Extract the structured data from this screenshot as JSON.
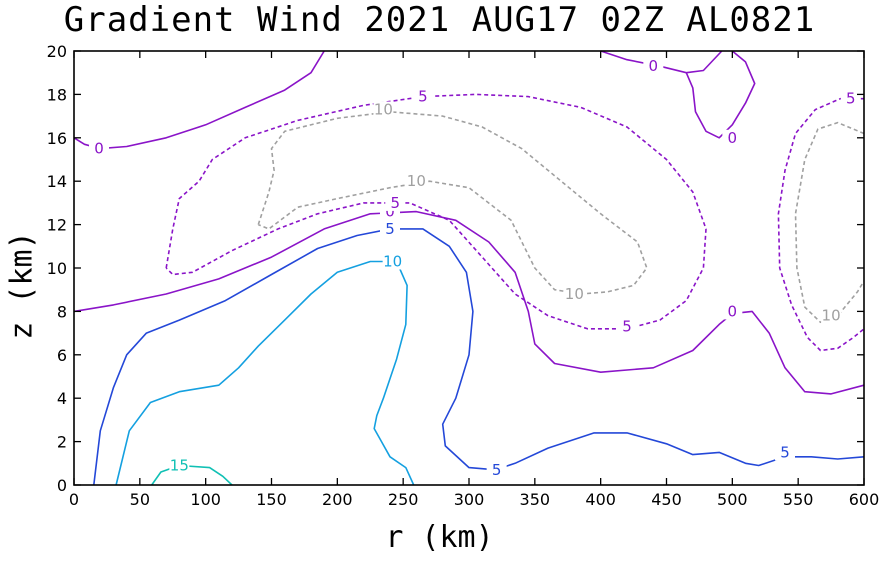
{
  "chart_data": {
    "type": "contour",
    "title": "Gradient Wind 2021 AUG17 02Z  AL0821",
    "xlabel": "r (km)",
    "ylabel": "z (km)",
    "xlim": [
      0,
      600
    ],
    "ylim": [
      0,
      20
    ],
    "xticks": [
      "0",
      "50",
      "100",
      "150",
      "200",
      "250",
      "300",
      "350",
      "400",
      "450",
      "500",
      "550",
      "600"
    ],
    "yticks": [
      "0",
      "2",
      "4",
      "6",
      "8",
      "10",
      "12",
      "14",
      "16",
      "18",
      "20"
    ],
    "colors": {
      "purple": "#8a14c8",
      "blue": "#2448d8",
      "cyan": "#14a0e0",
      "teal": "#10c0b4",
      "gray": "#a0a0a0"
    },
    "contours": [
      {
        "level": 0,
        "label": "0",
        "color": "purple",
        "dashed": false,
        "points": [
          [
            0,
            16.0
          ],
          [
            8,
            15.7
          ],
          [
            20,
            15.5
          ],
          [
            40,
            15.6
          ],
          [
            70,
            16.0
          ],
          [
            100,
            16.6
          ],
          [
            130,
            17.4
          ],
          [
            160,
            18.2
          ],
          [
            180,
            19.0
          ],
          [
            190,
            20.0
          ]
        ],
        "labels": [
          [
            19,
            15.5
          ]
        ]
      },
      {
        "level": 0,
        "label": "0",
        "color": "purple",
        "dashed": false,
        "points": [
          [
            400,
            20.0
          ],
          [
            420,
            19.6
          ],
          [
            445,
            19.3
          ],
          [
            465,
            19.0
          ],
          [
            478,
            19.1
          ],
          [
            492,
            20.0
          ]
        ],
        "labels": [
          [
            440,
            19.3
          ]
        ]
      },
      {
        "level": 0,
        "label": "0",
        "color": "purple",
        "dashed": false,
        "points": [
          [
            500,
            20.0
          ],
          [
            510,
            19.5
          ],
          [
            517,
            18.5
          ],
          [
            510,
            17.6
          ],
          [
            500,
            16.6
          ],
          [
            490,
            16.0
          ],
          [
            480,
            16.3
          ],
          [
            472,
            17.2
          ],
          [
            470,
            18.3
          ],
          [
            465,
            19.0
          ]
        ],
        "labels": [
          [
            500,
            16.0
          ]
        ]
      },
      {
        "level": 0,
        "label": "0",
        "color": "purple",
        "dashed": false,
        "points": [
          [
            0,
            8.0
          ],
          [
            30,
            8.3
          ],
          [
            70,
            8.8
          ],
          [
            110,
            9.5
          ],
          [
            150,
            10.5
          ],
          [
            190,
            11.8
          ],
          [
            225,
            12.5
          ],
          [
            260,
            12.6
          ],
          [
            290,
            12.2
          ],
          [
            315,
            11.2
          ],
          [
            335,
            9.8
          ],
          [
            345,
            8.0
          ],
          [
            350,
            6.5
          ],
          [
            365,
            5.6
          ],
          [
            400,
            5.2
          ],
          [
            440,
            5.4
          ],
          [
            470,
            6.2
          ],
          [
            490,
            7.4
          ],
          [
            500,
            7.9
          ],
          [
            515,
            8.0
          ],
          [
            528,
            7.0
          ],
          [
            540,
            5.4
          ],
          [
            555,
            4.3
          ],
          [
            575,
            4.2
          ],
          [
            600,
            4.6
          ]
        ],
        "labels": [
          [
            240,
            12.6
          ],
          [
            500,
            8.0
          ]
        ]
      },
      {
        "level": 5,
        "label": "5",
        "color": "purple",
        "dashed": true,
        "points": [
          [
            70,
            10.0
          ],
          [
            75,
            11.8
          ],
          [
            80,
            13.2
          ],
          [
            95,
            14.0
          ],
          [
            105,
            15.0
          ],
          [
            130,
            16.0
          ],
          [
            170,
            16.8
          ],
          [
            220,
            17.5
          ],
          [
            265,
            17.9
          ],
          [
            305,
            18.0
          ],
          [
            345,
            17.9
          ],
          [
            385,
            17.4
          ],
          [
            420,
            16.5
          ],
          [
            450,
            15.0
          ],
          [
            470,
            13.5
          ],
          [
            480,
            11.8
          ],
          [
            478,
            10.0
          ],
          [
            465,
            8.5
          ],
          [
            445,
            7.6
          ],
          [
            420,
            7.2
          ],
          [
            390,
            7.2
          ],
          [
            360,
            7.8
          ],
          [
            335,
            8.8
          ],
          [
            310,
            10.5
          ],
          [
            285,
            12.2
          ],
          [
            255,
            13.0
          ],
          [
            220,
            13.0
          ],
          [
            185,
            12.5
          ],
          [
            155,
            11.8
          ],
          [
            120,
            10.8
          ],
          [
            90,
            9.8
          ],
          [
            75,
            9.7
          ],
          [
            70,
            10.0
          ]
        ],
        "labels": [
          [
            265,
            17.9
          ],
          [
            420,
            7.3
          ],
          [
            244,
            13.0
          ]
        ]
      },
      {
        "level": 5,
        "label": "5",
        "color": "purple",
        "dashed": true,
        "points": [
          [
            600,
            17.8
          ],
          [
            582,
            17.8
          ],
          [
            563,
            17.3
          ],
          [
            548,
            16.2
          ],
          [
            540,
            14.5
          ],
          [
            535,
            12.5
          ],
          [
            536,
            10.0
          ],
          [
            545,
            8.3
          ],
          [
            557,
            6.8
          ],
          [
            567,
            6.2
          ],
          [
            580,
            6.3
          ],
          [
            592,
            6.8
          ],
          [
            600,
            7.2
          ]
        ],
        "labels": [
          [
            590,
            17.8
          ]
        ]
      },
      {
        "level": -10,
        "label": "10",
        "color": "gray",
        "dashed": true,
        "points": [
          [
            140,
            12.0
          ],
          [
            148,
            13.5
          ],
          [
            152,
            14.5
          ],
          [
            150,
            15.5
          ],
          [
            160,
            16.3
          ],
          [
            200,
            16.9
          ],
          [
            240,
            17.2
          ],
          [
            280,
            17.0
          ],
          [
            310,
            16.5
          ],
          [
            340,
            15.5
          ],
          [
            370,
            14.0
          ],
          [
            400,
            12.5
          ],
          [
            428,
            11.2
          ],
          [
            435,
            10.0
          ],
          [
            425,
            9.2
          ],
          [
            405,
            8.9
          ],
          [
            385,
            8.8
          ],
          [
            365,
            9.0
          ],
          [
            350,
            10.0
          ],
          [
            332,
            12.2
          ],
          [
            300,
            13.7
          ],
          [
            270,
            14.0
          ],
          [
            240,
            13.7
          ],
          [
            200,
            13.2
          ],
          [
            170,
            12.8
          ],
          [
            148,
            11.8
          ],
          [
            140,
            12.0
          ]
        ],
        "labels": [
          [
            235,
            17.3
          ],
          [
            260,
            14.0
          ],
          [
            380,
            8.8
          ]
        ]
      },
      {
        "level": -10,
        "label": "10",
        "color": "gray",
        "dashed": true,
        "points": [
          [
            600,
            16.2
          ],
          [
            580,
            16.7
          ],
          [
            565,
            16.4
          ],
          [
            555,
            15.0
          ],
          [
            548,
            12.5
          ],
          [
            549,
            10.0
          ],
          [
            555,
            8.2
          ],
          [
            567,
            7.5
          ],
          [
            580,
            7.8
          ],
          [
            595,
            8.9
          ],
          [
            600,
            9.4
          ]
        ],
        "labels": [
          [
            575,
            7.8
          ]
        ]
      },
      {
        "level": 5,
        "label": "5",
        "color": "blue",
        "dashed": false,
        "points": [
          [
            15,
            0.0
          ],
          [
            20,
            2.5
          ],
          [
            30,
            4.5
          ],
          [
            40,
            6.0
          ],
          [
            55,
            7.0
          ],
          [
            80,
            7.6
          ],
          [
            115,
            8.5
          ],
          [
            150,
            9.7
          ],
          [
            185,
            10.9
          ],
          [
            215,
            11.5
          ],
          [
            240,
            11.8
          ],
          [
            265,
            11.8
          ],
          [
            285,
            11.0
          ],
          [
            298,
            9.8
          ],
          [
            303,
            8.0
          ],
          [
            300,
            6.0
          ],
          [
            290,
            4.0
          ],
          [
            280,
            2.8
          ],
          [
            282,
            1.8
          ],
          [
            300,
            0.8
          ],
          [
            320,
            0.7
          ],
          [
            335,
            1.0
          ],
          [
            360,
            1.7
          ],
          [
            395,
            2.4
          ],
          [
            420,
            2.4
          ],
          [
            450,
            1.9
          ],
          [
            470,
            1.4
          ],
          [
            490,
            1.5
          ],
          [
            510,
            1.0
          ],
          [
            520,
            0.9
          ],
          [
            540,
            1.3
          ],
          [
            560,
            1.3
          ],
          [
            580,
            1.2
          ],
          [
            600,
            1.3
          ]
        ],
        "labels": [
          [
            240,
            11.8
          ],
          [
            321,
            0.7
          ],
          [
            540,
            1.5
          ]
        ]
      },
      {
        "level": 10,
        "label": "10",
        "color": "cyan",
        "dashed": false,
        "points": [
          [
            32,
            0.0
          ],
          [
            42,
            2.5
          ],
          [
            58,
            3.8
          ],
          [
            80,
            4.3
          ],
          [
            110,
            4.6
          ],
          [
            125,
            5.4
          ],
          [
            140,
            6.4
          ],
          [
            160,
            7.6
          ],
          [
            180,
            8.8
          ],
          [
            200,
            9.8
          ],
          [
            225,
            10.3
          ],
          [
            245,
            10.3
          ],
          [
            253,
            9.2
          ],
          [
            252,
            7.4
          ],
          [
            245,
            5.8
          ],
          [
            235,
            4.0
          ],
          [
            230,
            3.2
          ],
          [
            228,
            2.6
          ],
          [
            240,
            1.3
          ],
          [
            252,
            0.8
          ],
          [
            258,
            0.0
          ]
        ],
        "labels": [
          [
            242,
            10.3
          ]
        ]
      },
      {
        "level": 15,
        "label": "15",
        "color": "teal",
        "dashed": false,
        "points": [
          [
            59,
            0.0
          ],
          [
            66,
            0.6
          ],
          [
            80,
            0.9
          ],
          [
            103,
            0.8
          ],
          [
            113,
            0.4
          ],
          [
            120,
            0.0
          ]
        ],
        "labels": [
          [
            80,
            0.9
          ]
        ]
      }
    ]
  }
}
